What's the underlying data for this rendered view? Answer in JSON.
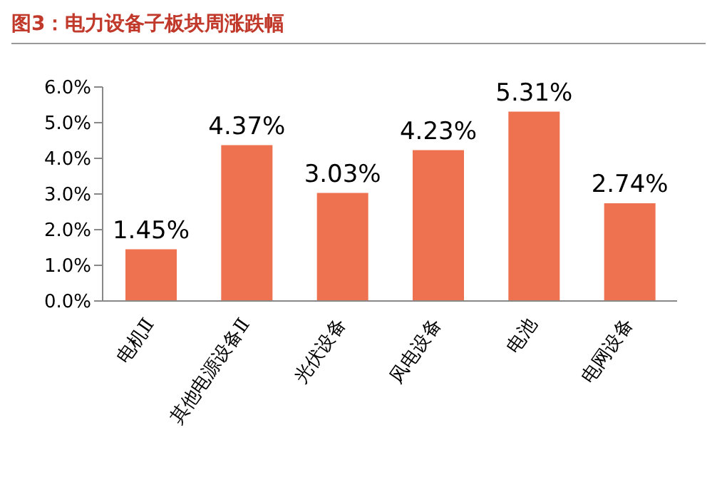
{
  "chart_data": {
    "type": "bar",
    "title": "图3：电力设备子板块周涨跌幅",
    "categories": [
      "电机Ⅱ",
      "其他电源设备Ⅱ",
      "光伏设备",
      "风电设备",
      "电池",
      "电网设备"
    ],
    "values": [
      1.45,
      4.37,
      3.03,
      4.23,
      5.31,
      2.74
    ],
    "value_labels": [
      "1.45%",
      "4.37%",
      "3.03%",
      "4.23%",
      "5.31%",
      "2.74%"
    ],
    "color": "#ee7150",
    "ylim": [
      0,
      6
    ],
    "yticks": [
      {
        "value": 0,
        "label": "0.0%"
      },
      {
        "value": 1,
        "label": "1.0%"
      },
      {
        "value": 2,
        "label": "2.0%"
      },
      {
        "value": 3,
        "label": "3.0%"
      },
      {
        "value": 4,
        "label": "4.0%"
      },
      {
        "value": 5,
        "label": "5.0%"
      },
      {
        "value": 6,
        "label": "6.0%"
      }
    ],
    "grid": false,
    "legend": false
  }
}
